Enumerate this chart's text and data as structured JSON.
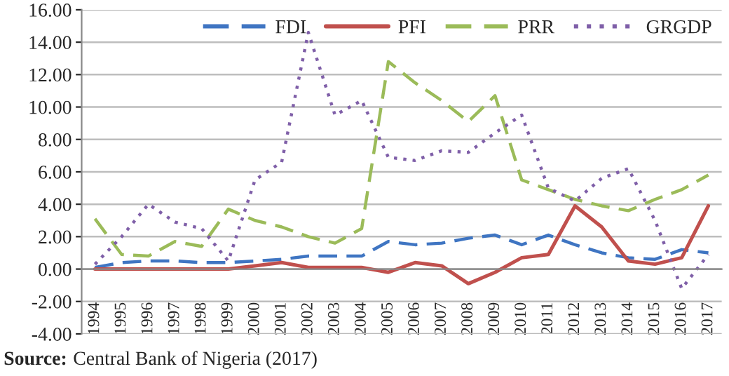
{
  "chart_data": {
    "type": "line",
    "categories": [
      "1994",
      "1995",
      "1996",
      "1997",
      "1998",
      "1999",
      "2000",
      "2001",
      "2002",
      "2003",
      "2004",
      "2005",
      "2006",
      "2007",
      "2008",
      "2009",
      "2010",
      "2011",
      "2012",
      "2013",
      "2014",
      "2015",
      "2016",
      "2017"
    ],
    "series": [
      {
        "name": "FDI",
        "color": "#3f75c2",
        "line_style": "dashed",
        "values": [
          0.1,
          0.4,
          0.5,
          0.5,
          0.4,
          0.4,
          0.5,
          0.6,
          0.8,
          0.8,
          0.8,
          1.7,
          1.5,
          1.6,
          1.9,
          2.1,
          1.5,
          2.1,
          1.5,
          1.0,
          0.7,
          0.6,
          1.2,
          1.0
        ]
      },
      {
        "name": "PFI",
        "color": "#c0504d",
        "line_style": "solid",
        "values": [
          0.0,
          0.0,
          0.0,
          0.0,
          0.0,
          0.0,
          0.2,
          0.4,
          0.1,
          0.1,
          0.1,
          -0.2,
          0.4,
          0.2,
          -0.9,
          -0.2,
          0.7,
          0.9,
          3.9,
          2.6,
          0.5,
          0.3,
          0.7,
          3.9
        ]
      },
      {
        "name": "PRR",
        "color": "#9bbb59",
        "line_style": "dashed",
        "values": [
          3.1,
          0.9,
          0.8,
          1.7,
          1.4,
          3.7,
          3.0,
          2.6,
          2.0,
          1.6,
          2.5,
          12.8,
          11.5,
          10.4,
          9.1,
          10.7,
          5.5,
          4.9,
          4.3,
          3.9,
          3.6,
          4.3,
          4.9,
          5.8
        ]
      },
      {
        "name": "GRGDP",
        "color": "#7f5fa8",
        "line_style": "dotted",
        "values": [
          0.3,
          2.0,
          4.0,
          2.9,
          2.5,
          0.5,
          5.5,
          6.6,
          14.6,
          9.5,
          10.4,
          6.9,
          6.7,
          7.3,
          7.2,
          8.4,
          9.5,
          5.0,
          4.2,
          5.6,
          6.2,
          3.0,
          -1.2,
          0.9
        ]
      }
    ],
    "ylim": [
      -4,
      16
    ],
    "yticks": [
      {
        "value": -4,
        "label": "-4.00"
      },
      {
        "value": -2,
        "label": "-2.00"
      },
      {
        "value": 0,
        "label": "0.00"
      },
      {
        "value": 2,
        "label": "2.00"
      },
      {
        "value": 4,
        "label": "4.00"
      },
      {
        "value": 6,
        "label": "6.00"
      },
      {
        "value": 8,
        "label": "8.00"
      },
      {
        "value": 10,
        "label": "10.00"
      },
      {
        "value": 12,
        "label": "12.00"
      },
      {
        "value": 14,
        "label": "14.00"
      },
      {
        "value": 16,
        "label": "16.00"
      }
    ],
    "grid": "y",
    "legend": "top right",
    "marker": "none",
    "annotations": [
      "Source: Central Bank of Nigeria (2017)"
    ]
  }
}
